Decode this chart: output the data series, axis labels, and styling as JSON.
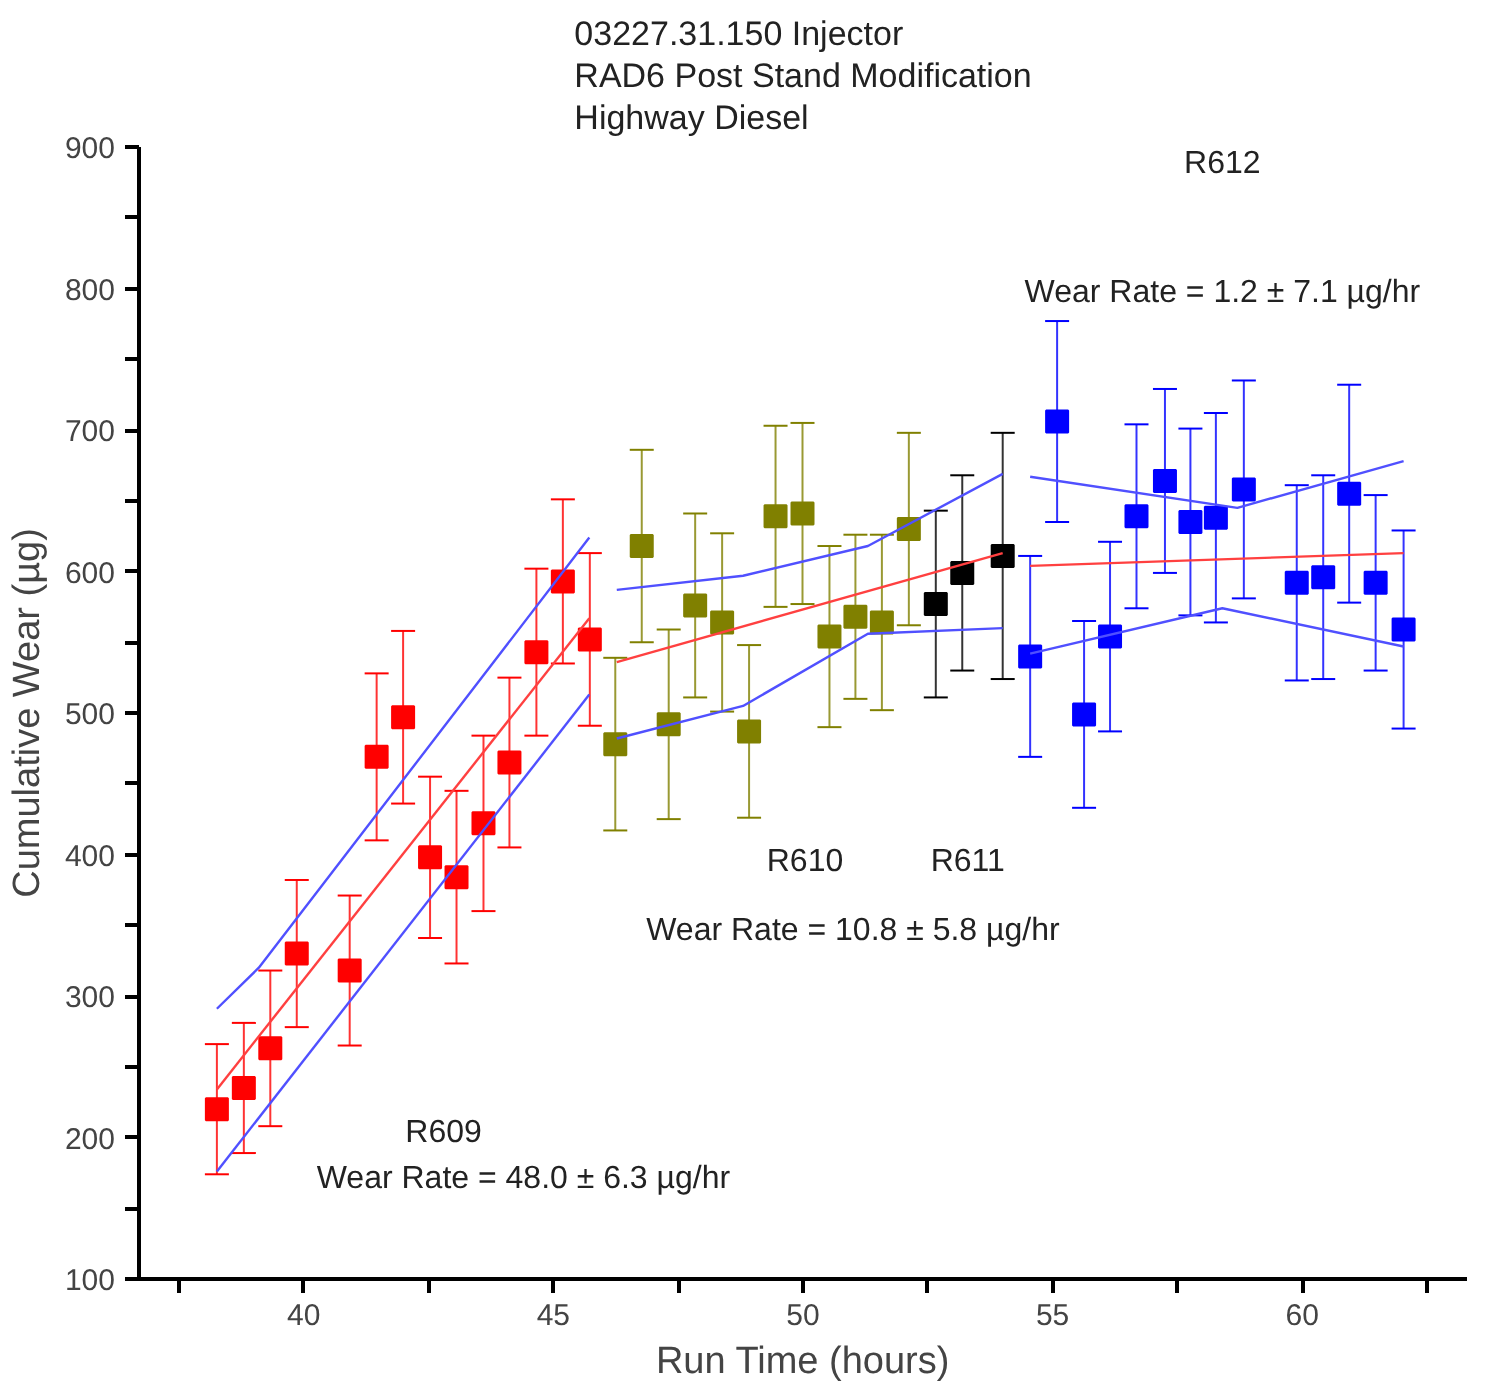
{
  "chart_data": {
    "type": "scatter",
    "title": "03227.31.150 Injector\nRAD6 Post Stand Modification\nHighway Diesel",
    "xlabel": "Run Time (hours)",
    "ylabel": "Cumulative Wear (µg)",
    "xlim": [
      36.7,
      63.3
    ],
    "ylim": [
      100,
      900
    ],
    "xticks": [
      {
        "value": 37.5,
        "label": null
      },
      40,
      {
        "value": 42.5,
        "label": null
      },
      45,
      {
        "value": 47.5,
        "label": null
      },
      50,
      {
        "value": 52.5,
        "label": null
      },
      55,
      {
        "value": 57.5,
        "label": null
      },
      60,
      {
        "value": 62.5,
        "label": null
      }
    ],
    "yticks": [
      100,
      {
        "value": 150,
        "label": null
      },
      200,
      {
        "value": 250,
        "label": null
      },
      300,
      {
        "value": 350,
        "label": null
      },
      400,
      {
        "value": 450,
        "label": null
      },
      500,
      {
        "value": 550,
        "label": null
      },
      600,
      {
        "value": 650,
        "label": null
      },
      700,
      {
        "value": 750,
        "label": null
      },
      800,
      {
        "value": 850,
        "label": null
      },
      900
    ],
    "grid": false,
    "series": [
      {
        "marker": "square",
        "color": "#ff0000",
        "x": [
          38.26,
          38.8,
          39.33,
          39.86,
          40.92,
          41.46,
          41.99,
          42.53,
          43.06,
          43.6,
          44.12,
          44.66,
          45.19,
          45.73
        ],
        "values": [
          220,
          235,
          263,
          330,
          318,
          469,
          497,
          398,
          384,
          422,
          465,
          543,
          593,
          552
        ],
        "errors": [
          46,
          46,
          55,
          52,
          53,
          59,
          61,
          57,
          61,
          62,
          60,
          59,
          58,
          61
        ]
      },
      {
        "marker": "square",
        "color": "#808000",
        "x": [
          46.24,
          46.77,
          47.31,
          47.84,
          48.38,
          48.92,
          49.45,
          49.99,
          50.53,
          51.05,
          51.58,
          52.12
        ],
        "values": [
          478,
          618,
          492,
          576,
          564,
          487,
          639,
          641,
          554,
          568,
          564,
          630
        ],
        "errors": [
          61,
          68,
          67,
          65,
          63,
          61,
          64,
          64,
          64,
          58,
          62,
          68
        ]
      },
      {
        "marker": "square",
        "color": "#000000",
        "x": [
          52.66,
          53.19,
          54.0
        ],
        "values": [
          577,
          599,
          611
        ],
        "errors": [
          66,
          69,
          87
        ]
      },
      {
        "marker": "square",
        "color": "#0000ff",
        "x": [
          54.55,
          55.09,
          55.63,
          56.15,
          56.68,
          57.25,
          57.76,
          58.27,
          58.83,
          59.89,
          60.42,
          60.94,
          61.47,
          62.03
        ],
        "values": [
          540,
          706,
          499,
          554,
          639,
          664,
          635,
          638,
          658,
          592,
          596,
          655,
          592,
          559
        ],
        "errors": [
          71,
          71,
          66,
          67,
          65,
          65,
          66,
          74,
          77,
          69,
          72,
          77,
          62,
          70
        ]
      },
      {
        "type": "line",
        "color": "#ff4040",
        "x": [
          38.26,
          45.72
        ],
        "values": [
          234,
          567
        ]
      },
      {
        "type": "line",
        "color": "#5050ff",
        "x": [
          38.26,
          39.1,
          45.72
        ],
        "values": [
          291,
          320,
          624
        ]
      },
      {
        "type": "line",
        "color": "#5050ff",
        "x": [
          38.26,
          45.72
        ],
        "values": [
          176,
          513
        ]
      },
      {
        "type": "line",
        "color": "#ff4040",
        "x": [
          46.27,
          54.0
        ],
        "values": [
          536,
          613
        ]
      },
      {
        "type": "line",
        "color": "#5050ff",
        "x": [
          46.27,
          48.8,
          51.3,
          54.0
        ],
        "values": [
          587,
          597,
          618,
          669
        ]
      },
      {
        "type": "line",
        "color": "#5050ff",
        "x": [
          46.27,
          48.8,
          51.3,
          54.0
        ],
        "values": [
          482,
          505,
          556,
          560
        ]
      },
      {
        "type": "line",
        "color": "#ff4040",
        "x": [
          54.55,
          62.03
        ],
        "values": [
          604,
          613
        ]
      },
      {
        "type": "line",
        "color": "#5050ff",
        "x": [
          54.55,
          58.7,
          62.03
        ],
        "values": [
          667,
          645,
          678
        ]
      },
      {
        "type": "line",
        "color": "#5050ff",
        "x": [
          54.55,
          58.4,
          62.03
        ],
        "values": [
          542,
          574,
          547
        ]
      }
    ],
    "annotations": [
      "R609",
      "Wear Rate = 48.0 ± 6.3 µg/hr",
      "R610",
      "R611",
      "Wear Rate = 10.8 ± 5.8 µg/hr",
      "R612",
      "Wear Rate = 1.2 ± 7.1 µg/hr"
    ]
  }
}
